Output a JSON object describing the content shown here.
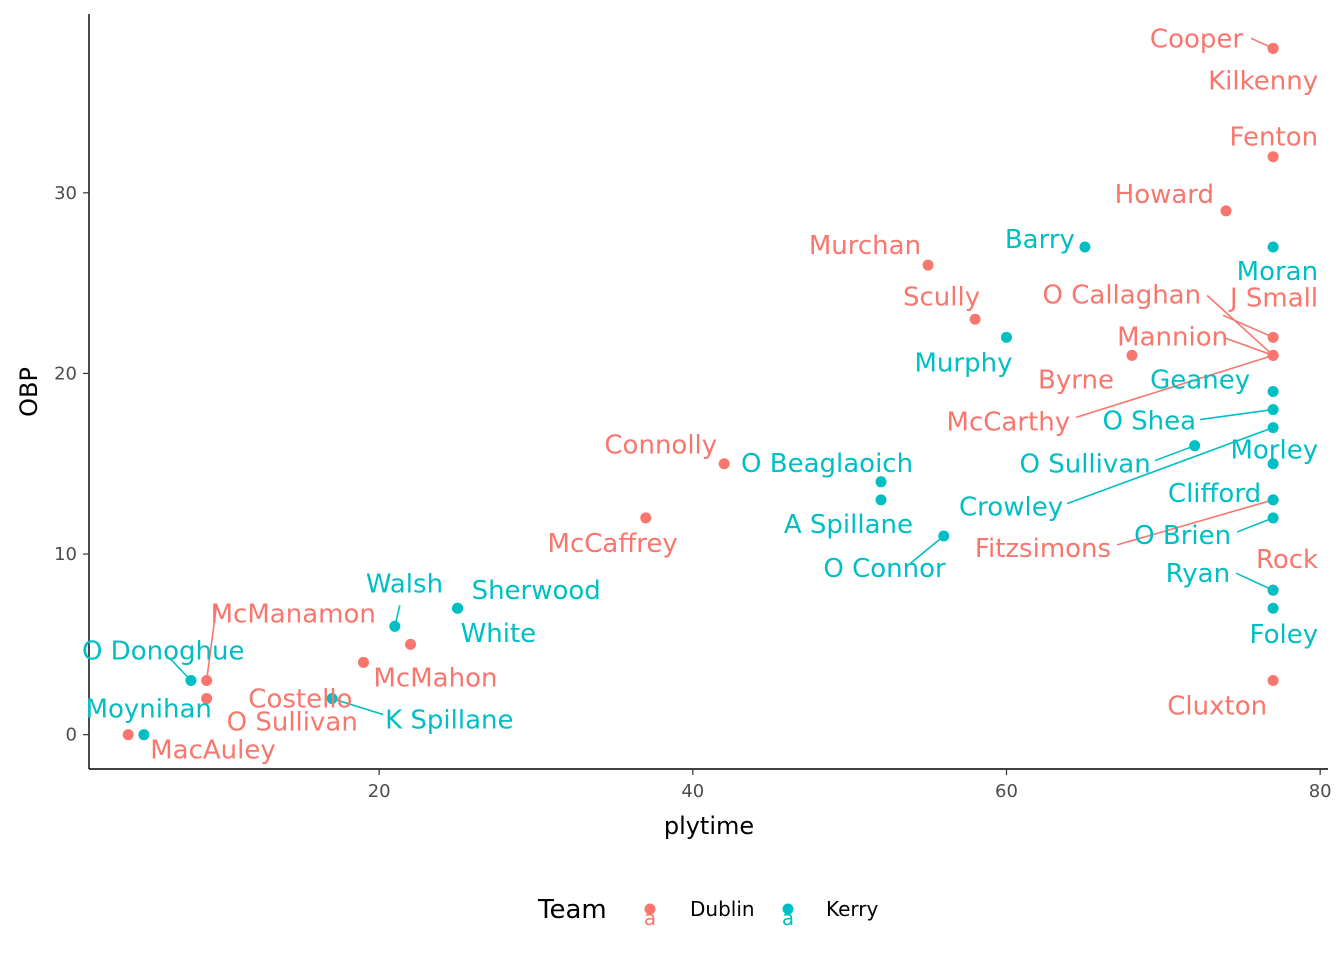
{
  "chart_data": {
    "type": "scatter",
    "xlabel": "plytime",
    "ylabel": "OBP",
    "xlim": [
      1.5,
      80.5
    ],
    "ylim": [
      -1.9,
      39.9
    ],
    "x_ticks": [
      20,
      40,
      60,
      80
    ],
    "y_ticks": [
      0,
      10,
      20,
      30
    ],
    "grid": false,
    "legend": {
      "title": "Team",
      "position": "bottom",
      "key_glyph": "a",
      "items": [
        {
          "name": "Dublin",
          "color": "#F8766D"
        },
        {
          "name": "Kerry",
          "color": "#00BFC4"
        }
      ]
    },
    "series": [
      {
        "name": "Dublin",
        "color": "#F8766D",
        "points": [
          {
            "label": "Cooper",
            "x": 77,
            "y": 38
          },
          {
            "label": "Kilkenny",
            "x": 77,
            "y": 38
          },
          {
            "label": "Fenton",
            "x": 77,
            "y": 32
          },
          {
            "label": "Howard",
            "x": 74,
            "y": 29
          },
          {
            "label": "Murchan",
            "x": 55,
            "y": 26
          },
          {
            "label": "Scully",
            "x": 58,
            "y": 23
          },
          {
            "label": "O Callaghan",
            "x": 77,
            "y": 21
          },
          {
            "label": "J Small",
            "x": 77,
            "y": 22
          },
          {
            "label": "Mannion",
            "x": 77,
            "y": 21
          },
          {
            "label": "Byrne",
            "x": 68,
            "y": 21
          },
          {
            "label": "McCarthy",
            "x": 77,
            "y": 21
          },
          {
            "label": "Connolly",
            "x": 42,
            "y": 15
          },
          {
            "label": "McCaffrey",
            "x": 37,
            "y": 12
          },
          {
            "label": "Fitzsimons",
            "x": 77,
            "y": 13
          },
          {
            "label": "Rock",
            "x": 77,
            "y": 8
          },
          {
            "label": "Cluxton",
            "x": 77,
            "y": 3
          },
          {
            "label": "McManamon",
            "x": 9,
            "y": 3
          },
          {
            "label": "McMahon",
            "x": 22,
            "y": 5
          },
          {
            "label": "Costello",
            "x": 19,
            "y": 4
          },
          {
            "label": "O Sullivan",
            "x": 9,
            "y": 2
          },
          {
            "label": "MacAuley",
            "x": 4,
            "y": 0
          }
        ]
      },
      {
        "name": "Kerry",
        "color": "#00BFC4",
        "points": [
          {
            "label": "Barry",
            "x": 65,
            "y": 27
          },
          {
            "label": "Moran",
            "x": 77,
            "y": 27
          },
          {
            "label": "Murphy",
            "x": 60,
            "y": 22
          },
          {
            "label": "Geaney",
            "x": 77,
            "y": 19
          },
          {
            "label": "O Shea",
            "x": 77,
            "y": 18
          },
          {
            "label": "O Sullivan",
            "x": 72,
            "y": 16
          },
          {
            "label": "Morley",
            "x": 77,
            "y": 15
          },
          {
            "label": "Crowley",
            "x": 77,
            "y": 17
          },
          {
            "label": "Clifford",
            "x": 77,
            "y": 13
          },
          {
            "label": "O Brien",
            "x": 77,
            "y": 12
          },
          {
            "label": "O Beaglaoich",
            "x": 52,
            "y": 14
          },
          {
            "label": "A Spillane",
            "x": 52,
            "y": 13
          },
          {
            "label": "O Connor",
            "x": 56,
            "y": 11
          },
          {
            "label": "Ryan",
            "x": 77,
            "y": 8
          },
          {
            "label": "Foley",
            "x": 77,
            "y": 7
          },
          {
            "label": "Walsh",
            "x": 21,
            "y": 6
          },
          {
            "label": "Sherwood",
            "x": 25,
            "y": 7
          },
          {
            "label": "White",
            "x": 25,
            "y": 7
          },
          {
            "label": "O Donoghue",
            "x": 8,
            "y": 3
          },
          {
            "label": "K Spillane",
            "x": 17,
            "y": 2
          },
          {
            "label": "Moynihan",
            "x": 5,
            "y": 0
          }
        ]
      }
    ]
  }
}
